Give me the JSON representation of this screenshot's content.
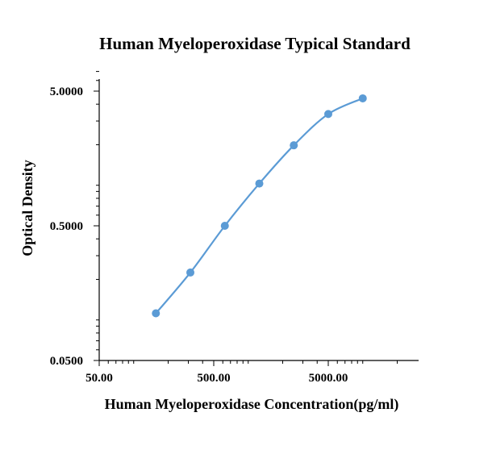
{
  "chart_data": {
    "type": "scatter",
    "title": "Human Myeloperoxidase Typical Standard",
    "xlabel": "Human Myeloperoxidase  Concentration(pg/ml)",
    "ylabel": "Optical Density",
    "x_scale": "log",
    "y_scale": "log",
    "xlim": [
      50,
      25000
    ],
    "ylim": [
      0.05,
      7
    ],
    "x_ticks": [
      {
        "value": 50,
        "label": "50.00"
      },
      {
        "value": 500,
        "label": "500.00"
      },
      {
        "value": 5000,
        "label": "5000.00"
      }
    ],
    "y_ticks": [
      {
        "value": 0.05,
        "label": "0.0500"
      },
      {
        "value": 0.5,
        "label": "0.5000"
      },
      {
        "value": 5,
        "label": "5.0000"
      }
    ],
    "grid": false,
    "legend": "none",
    "series": [
      {
        "color": "#5b9bd5",
        "x": [
          156.25,
          312.5,
          625,
          1250,
          2500,
          5000,
          10000
        ],
        "y": [
          0.112,
          0.225,
          0.5,
          1.03,
          1.98,
          3.38,
          4.42
        ]
      }
    ]
  }
}
